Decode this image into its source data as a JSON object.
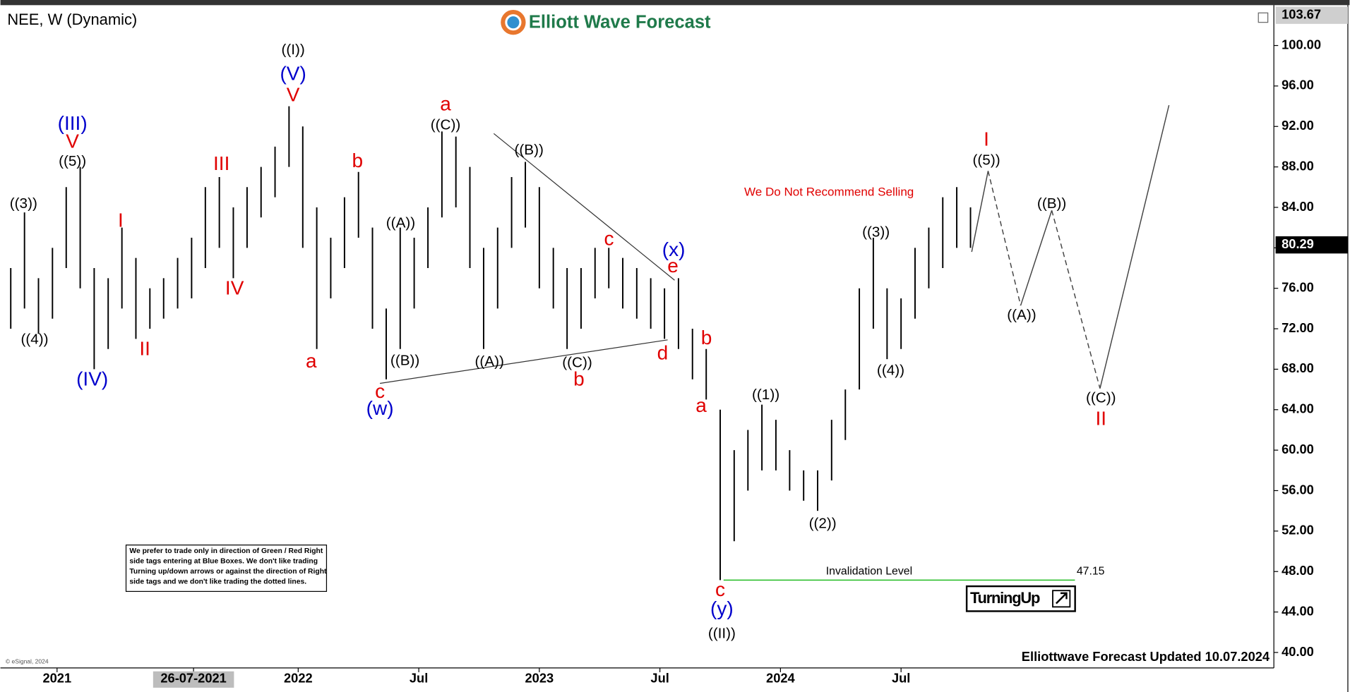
{
  "chart_data": {
    "type": "ohlc",
    "title": "NEE, W (Dynamic)",
    "brand": "Elliott Wave Forecast",
    "footer": "Elliottwave Forecast Updated 10.07.2024",
    "copyright": "© eSignal, 2024",
    "note": "We Do Not Recommend Selling",
    "disclaimer": [
      "We prefer to trade only in direction of Green / Red Right",
      "side tags entering at Blue Boxes. We don't like trading",
      "Turning up/down arrows or against the direction of Right",
      "side tags and we don't like trading the dotted lines."
    ],
    "badge": "TurningUp",
    "bar_color": "#000000",
    "x": [
      2020.808,
      2020.865,
      2020.923,
      2020.981,
      2021.038,
      2021.096,
      2021.154,
      2021.212,
      2021.269,
      2021.327,
      2021.385,
      2021.442,
      2021.5,
      2021.558,
      2021.615,
      2021.673,
      2021.731,
      2021.788,
      2021.846,
      2021.904,
      2021.962,
      2022.019,
      2022.077,
      2022.135,
      2022.192,
      2022.25,
      2022.308,
      2022.365,
      2022.423,
      2022.481,
      2022.538,
      2022.596,
      2022.654,
      2022.712,
      2022.769,
      2022.827,
      2022.885,
      2022.942,
      2023,
      2023.058,
      2023.115,
      2023.173,
      2023.231,
      2023.288,
      2023.346,
      2023.404,
      2023.462,
      2023.519,
      2023.577,
      2023.635,
      2023.692,
      2023.75,
      2023.808,
      2023.865,
      2023.923,
      2023.981,
      2024.038,
      2024.096,
      2024.154,
      2024.212,
      2024.269,
      2024.327,
      2024.385,
      2024.442,
      2024.5,
      2024.558,
      2024.615,
      2024.673,
      2024.731,
      2024.788
    ],
    "lows": [
      72,
      74,
      71.5,
      73,
      78,
      76,
      68,
      70,
      74,
      71,
      72,
      73,
      74,
      75,
      78,
      80,
      77,
      80,
      83,
      85,
      88,
      80,
      70,
      75,
      78,
      81,
      72,
      67,
      70,
      74,
      78,
      83,
      84,
      78,
      70,
      74,
      80,
      82,
      76,
      74,
      70,
      72,
      75,
      76,
      74,
      73,
      72,
      71,
      70,
      67,
      65,
      47.15,
      51,
      56,
      58,
      58,
      56,
      55,
      54,
      57,
      61,
      66,
      72,
      69,
      70,
      73,
      76,
      78,
      80,
      80
    ],
    "highs": [
      78,
      83.5,
      77,
      80,
      86,
      88,
      78,
      77,
      82,
      79,
      76,
      77,
      79,
      81,
      86,
      87,
      84,
      86,
      88,
      90,
      94,
      92,
      84,
      81,
      85,
      87.5,
      82,
      74,
      82,
      81,
      84,
      91.5,
      91,
      88,
      80,
      82,
      87,
      88.5,
      86,
      80,
      78,
      78,
      80,
      80,
      79,
      78,
      77,
      76,
      77,
      72,
      70,
      64,
      60,
      62,
      64.5,
      63,
      60,
      58,
      58,
      63,
      66,
      76,
      81,
      76,
      75,
      80,
      82,
      85,
      86,
      84
    ],
    "xlim": [
      2020.783,
      2026.046
    ],
    "ylim": [
      38.47,
      103.82
    ],
    "xticks": [
      2021,
      {
        "value": 2021.566,
        "label": "26-07-2021"
      },
      2022,
      {
        "value": 2022.5,
        "label": "Jul"
      },
      2023,
      {
        "value": 2023.5,
        "label": "Jul"
      },
      2024,
      {
        "value": 2024.5,
        "label": "Jul"
      }
    ],
    "yticks": [
      {
        "value": 40,
        "label": "40.00"
      },
      {
        "value": 44,
        "label": "44.00"
      },
      {
        "value": 48,
        "label": "48.00"
      },
      {
        "value": 52,
        "label": "52.00"
      },
      {
        "value": 56,
        "label": "56.00"
      },
      {
        "value": 60,
        "label": "60.00"
      },
      {
        "value": 64,
        "label": "64.00"
      },
      {
        "value": 68,
        "label": "68.00"
      },
      {
        "value": 72,
        "label": "72.00"
      },
      {
        "value": 76,
        "label": "76.00"
      },
      {
        "value": 80,
        "label": "80.00"
      },
      {
        "value": 84,
        "label": "84.00"
      },
      {
        "value": 88,
        "label": "88.00"
      },
      {
        "value": 92,
        "label": "92.00"
      },
      {
        "value": 96,
        "label": "96.00"
      },
      {
        "value": 100,
        "label": "100.00"
      }
    ],
    "last_price": 80.29,
    "top_price": 103.67,
    "invalidation": {
      "label": "Invalidation Level",
      "value": 47.15,
      "x": [
        2023.764,
        2025.221
      ],
      "color": "#22bb22"
    },
    "trendlines": [
      {
        "x": [
          2022.339,
          2023.532
        ],
        "values": [
          66.6,
          70.9
        ]
      },
      {
        "x": [
          2022.811,
          2023.561
        ],
        "values": [
          91.3,
          76.8
        ]
      }
    ],
    "projection": [
      {
        "x": [
          2024.793,
          2024.861
        ],
        "values": [
          79.6,
          87.6
        ],
        "dashed": false
      },
      {
        "x": [
          2024.861,
          2024.996
        ],
        "values": [
          87.6,
          74.3
        ],
        "dashed": true
      },
      {
        "x": [
          2024.996,
          2025.125
        ],
        "values": [
          74.3,
          83.7
        ],
        "dashed": false
      },
      {
        "x": [
          2025.125,
          2025.325
        ],
        "values": [
          83.7,
          66.1
        ],
        "dashed": true
      },
      {
        "x": [
          2025.325,
          2025.611
        ],
        "values": [
          66.1,
          94.1
        ],
        "dashed": false
      }
    ],
    "annotations": [
      {
        "text": "((3))",
        "x": 2020.861,
        "y": 84.3,
        "color": "#000000"
      },
      {
        "text": "((4))",
        "x": 2020.907,
        "y": 70.9,
        "color": "#000000"
      },
      {
        "text": "((5))",
        "x": 2021.064,
        "y": 88.5,
        "color": "#000000"
      },
      {
        "text": "V",
        "x": 2021.064,
        "y": 90.4,
        "color": "#e00000"
      },
      {
        "text": "(III)",
        "x": 2021.064,
        "y": 92.2,
        "color": "#0000cc"
      },
      {
        "text": "(IV)",
        "x": 2021.146,
        "y": 66.9,
        "color": "#0000cc"
      },
      {
        "text": "I",
        "x": 2021.264,
        "y": 82.6,
        "color": "#e00000"
      },
      {
        "text": "II",
        "x": 2021.364,
        "y": 69.9,
        "color": "#e00000"
      },
      {
        "text": "III",
        "x": 2021.682,
        "y": 88.2,
        "color": "#e00000"
      },
      {
        "text": "IV",
        "x": 2021.736,
        "y": 75.9,
        "color": "#e00000"
      },
      {
        "text": "((I))",
        "x": 2021.979,
        "y": 99.5,
        "color": "#000000"
      },
      {
        "text": "(V)",
        "x": 2021.979,
        "y": 97.1,
        "color": "#0000cc"
      },
      {
        "text": "V",
        "x": 2021.979,
        "y": 95.0,
        "color": "#e00000"
      },
      {
        "text": "a",
        "x": 2022.054,
        "y": 68.7,
        "color": "#e00000"
      },
      {
        "text": "b",
        "x": 2022.246,
        "y": 88.5,
        "color": "#e00000"
      },
      {
        "text": "((A))",
        "x": 2022.425,
        "y": 82.4,
        "color": "#000000"
      },
      {
        "text": "((B))",
        "x": 2022.443,
        "y": 68.8,
        "color": "#000000"
      },
      {
        "text": "c",
        "x": 2022.339,
        "y": 65.7,
        "color": "#e00000"
      },
      {
        "text": "(w)",
        "x": 2022.339,
        "y": 64.0,
        "color": "#0000cc"
      },
      {
        "text": "a",
        "x": 2022.611,
        "y": 94.1,
        "color": "#e00000"
      },
      {
        "text": "((C))",
        "x": 2022.611,
        "y": 92.1,
        "color": "#000000"
      },
      {
        "text": "((A))",
        "x": 2022.793,
        "y": 68.7,
        "color": "#000000"
      },
      {
        "text": "((B))",
        "x": 2022.957,
        "y": 89.6,
        "color": "#000000"
      },
      {
        "text": "((C))",
        "x": 2023.157,
        "y": 68.6,
        "color": "#000000"
      },
      {
        "text": "b",
        "x": 2023.164,
        "y": 66.9,
        "color": "#e00000"
      },
      {
        "text": "c",
        "x": 2023.289,
        "y": 80.8,
        "color": "#e00000"
      },
      {
        "text": "d",
        "x": 2023.511,
        "y": 69.5,
        "color": "#e00000"
      },
      {
        "text": "e",
        "x": 2023.554,
        "y": 78.1,
        "color": "#e00000"
      },
      {
        "text": "(x)",
        "x": 2023.557,
        "y": 79.7,
        "color": "#0000cc"
      },
      {
        "text": "b",
        "x": 2023.693,
        "y": 71.0,
        "color": "#e00000"
      },
      {
        "text": "a",
        "x": 2023.671,
        "y": 64.3,
        "color": "#e00000"
      },
      {
        "text": "c",
        "x": 2023.75,
        "y": 46.1,
        "color": "#e00000"
      },
      {
        "text": "(y)",
        "x": 2023.757,
        "y": 44.2,
        "color": "#0000cc"
      },
      {
        "text": "((II))",
        "x": 2023.757,
        "y": 41.8,
        "color": "#000000"
      },
      {
        "text": "((1))",
        "x": 2023.939,
        "y": 65.4,
        "color": "#000000"
      },
      {
        "text": "((2))",
        "x": 2024.175,
        "y": 52.7,
        "color": "#000000"
      },
      {
        "text": "((3))",
        "x": 2024.396,
        "y": 81.5,
        "color": "#000000"
      },
      {
        "text": "((4))",
        "x": 2024.457,
        "y": 67.8,
        "color": "#000000"
      },
      {
        "text": "I",
        "x": 2024.854,
        "y": 90.6,
        "color": "#e00000"
      },
      {
        "text": "((5))",
        "x": 2024.854,
        "y": 88.6,
        "color": "#000000"
      },
      {
        "text": "((A))",
        "x": 2025,
        "y": 73.3,
        "color": "#000000"
      },
      {
        "text": "((B))",
        "x": 2025.125,
        "y": 84.3,
        "color": "#000000"
      },
      {
        "text": "((C))",
        "x": 2025.329,
        "y": 65.1,
        "color": "#000000"
      },
      {
        "text": "II",
        "x": 2025.329,
        "y": 63.0,
        "color": "#e00000"
      }
    ]
  }
}
